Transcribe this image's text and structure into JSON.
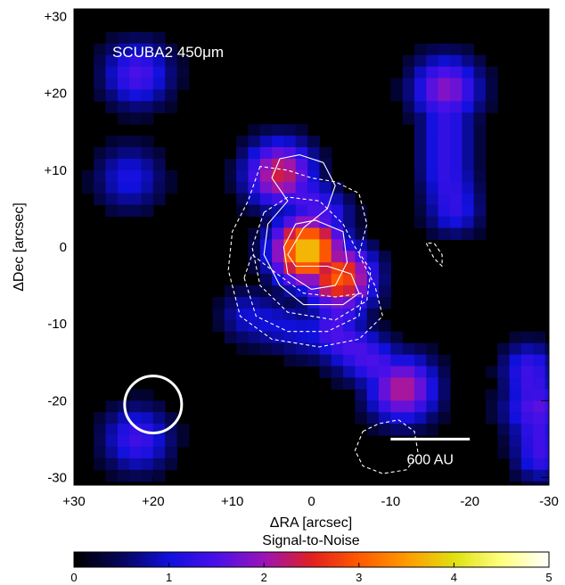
{
  "chart_data": {
    "type": "heatmap",
    "map_label": "SCUBA2 450μm",
    "xlabel": "ΔRA [arcsec]",
    "ylabel": "ΔDec [arcsec]",
    "xlim": [
      30,
      -30
    ],
    "ylim": [
      -31,
      31
    ],
    "x_ticks": [
      "+30",
      "+20",
      "+10",
      "0",
      "-10",
      "-20",
      "-30"
    ],
    "x_tick_values": [
      30,
      20,
      10,
      0,
      -10,
      -20,
      -30
    ],
    "y_ticks": [
      "+30",
      "+20",
      "+10",
      "0",
      "-10",
      "-20",
      "-30"
    ],
    "y_tick_values": [
      30,
      20,
      10,
      0,
      -10,
      -20,
      -30
    ],
    "scale_bar_label": "600 AU",
    "scale_bar_ra": [
      -10,
      -20
    ],
    "scale_bar_dec": -25,
    "beam": {
      "ra": 20,
      "dec": -20.5,
      "radius_arcsec": 3.6,
      "color": "#ffffff"
    },
    "colorbar": {
      "label": "Signal-to-Noise",
      "range": [
        0,
        5
      ],
      "ticks": [
        "0",
        "1",
        "2",
        "3",
        "4",
        "5"
      ],
      "tick_values": [
        0,
        1,
        2,
        3,
        4,
        5
      ],
      "colormap": [
        "#000000",
        "#06065a",
        "#1010dc",
        "#4a10e8",
        "#9a14b8",
        "#e02020",
        "#ff5a00",
        "#ff9a00",
        "#e0e010",
        "#ffff80",
        "#ffffff"
      ]
    },
    "emission_peaks": [
      {
        "ra": 0.5,
        "dec": -0.5,
        "snr": 3.9
      },
      {
        "ra": -3.5,
        "dec": -4,
        "snr": 3.0
      },
      {
        "ra": 4,
        "dec": 9.5,
        "snr": 2.4
      },
      {
        "ra": -11.5,
        "dec": -18.5,
        "snr": 2.2
      },
      {
        "ra": -17,
        "dec": 20.5,
        "snr": 1.9
      },
      {
        "ra": 22,
        "dec": 22.5,
        "snr": 1.5
      },
      {
        "ra": 23,
        "dec": 9,
        "snr": 1.1
      },
      {
        "ra": 22,
        "dec": -25,
        "snr": 1.4
      },
      {
        "ra": -28.5,
        "dec": -21,
        "snr": 1.6
      }
    ],
    "contour_colors": {
      "solid": "#ffffff",
      "dashed": "#ffffff"
    }
  }
}
